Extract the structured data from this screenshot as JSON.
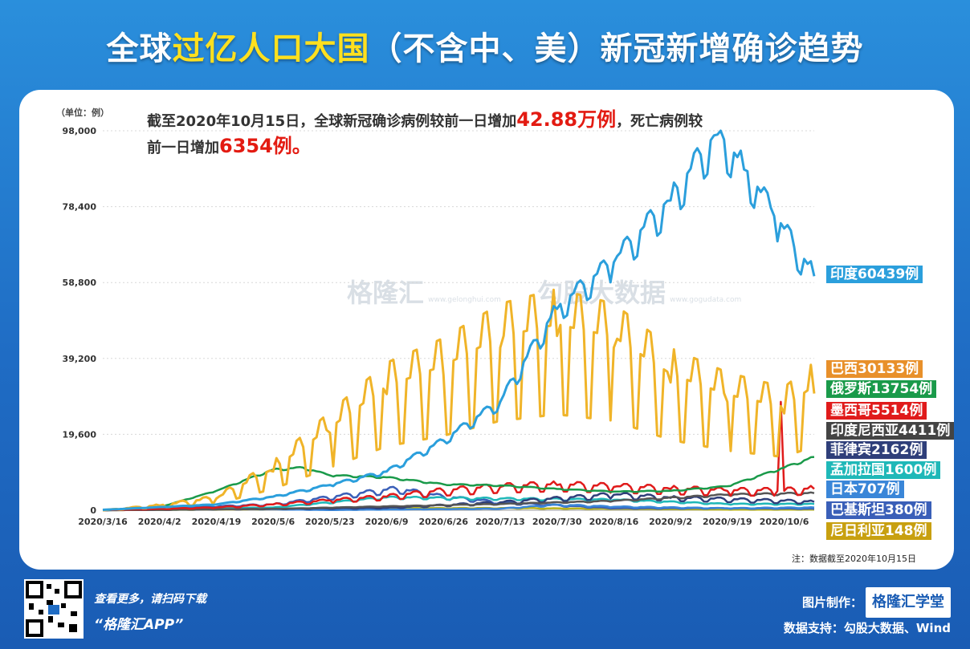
{
  "header": {
    "title_pre": "全球",
    "title_hl": "过亿人口大国",
    "title_post": "（不含中、美）新冠新增确诊趋势"
  },
  "annotation": {
    "l1_pre": "截至2020年10月15日，全球新冠确诊病例较前一日增加",
    "l1_num": "42.88万例",
    "l1_post": "，死亡病例较",
    "l2_pre": "前一日增加",
    "l2_num": "6354例。"
  },
  "watermark": {
    "name1": "格隆汇",
    "url1": "www.gelonghui.com",
    "name2": "勾股大数据",
    "url2": "www.gogudata.com"
  },
  "footnote": "注：数据截至2020年10月15日",
  "footer": {
    "scan1": "查看更多，请扫码下载",
    "scan2": "“格隆汇APP”",
    "made_label": "图片制作：",
    "made_brand": "格隆汇学堂",
    "support": "数据支持：勾股大数据、Wind"
  },
  "chart_data": {
    "type": "line",
    "title": "全球过亿人口大国（不含中、美）新冠新增确诊趋势",
    "unit_label": "（单位：例）",
    "ylim": [
      0,
      98000
    ],
    "y_ticks": [
      0,
      19600,
      39200,
      58800,
      78400,
      98000
    ],
    "y_tick_labels": [
      "0",
      "19,600",
      "39,200",
      "58,800",
      "78,400",
      "98,000"
    ],
    "x_tick_labels": [
      "2020/3/16",
      "2020/4/2",
      "2020/4/19",
      "2020/5/6",
      "2020/5/23",
      "2020/6/9",
      "2020/6/26",
      "2020/7/13",
      "2020/7/30",
      "2020/8/16",
      "2020/9/2",
      "2020/9/19",
      "2020/10/6"
    ],
    "x_range": [
      "2020-03-16",
      "2020-10-15"
    ],
    "legend_position": "right",
    "series": [
      {
        "name": "印度",
        "legend": "印度60439例",
        "color": "#2b9fdc",
        "final": 60439,
        "anchors": [
          [
            "2020-03-16",
            100
          ],
          [
            "2020-04-19",
            1500
          ],
          [
            "2020-05-06",
            3500
          ],
          [
            "2020-05-23",
            6500
          ],
          [
            "2020-06-09",
            10000
          ],
          [
            "2020-06-26",
            18000
          ],
          [
            "2020-07-13",
            28000
          ],
          [
            "2020-07-30",
            52000
          ],
          [
            "2020-08-16",
            64000
          ],
          [
            "2020-09-02",
            80000
          ],
          [
            "2020-09-16",
            97000
          ],
          [
            "2020-09-24",
            88000
          ],
          [
            "2020-10-03",
            76000
          ],
          [
            "2020-10-09",
            68000
          ],
          [
            "2020-10-15",
            60439
          ]
        ],
        "amp": 0.07
      },
      {
        "name": "巴西",
        "legend": "巴西30133例",
        "color": "#f0b429",
        "final": 30133,
        "anchors": [
          [
            "2020-03-16",
            0
          ],
          [
            "2020-04-02",
            1200
          ],
          [
            "2020-04-19",
            3000
          ],
          [
            "2020-05-06",
            10000
          ],
          [
            "2020-05-23",
            20000
          ],
          [
            "2020-06-09",
            30000
          ],
          [
            "2020-06-26",
            35000
          ],
          [
            "2020-07-13",
            42000
          ],
          [
            "2020-07-30",
            45000
          ],
          [
            "2020-08-16",
            42000
          ],
          [
            "2020-09-02",
            33000
          ],
          [
            "2020-09-19",
            28000
          ],
          [
            "2020-10-06",
            25000
          ],
          [
            "2020-10-15",
            30133
          ]
        ],
        "amp": 0.45
      },
      {
        "name": "俄罗斯",
        "legend": "俄罗斯13754例",
        "color": "#1a9a4a",
        "final": 13754,
        "anchors": [
          [
            "2020-03-16",
            0
          ],
          [
            "2020-04-02",
            800
          ],
          [
            "2020-04-19",
            5000
          ],
          [
            "2020-05-06",
            10500
          ],
          [
            "2020-05-15",
            11000
          ],
          [
            "2020-05-23",
            9000
          ],
          [
            "2020-06-09",
            8500
          ],
          [
            "2020-06-26",
            6700
          ],
          [
            "2020-07-13",
            6400
          ],
          [
            "2020-07-30",
            5500
          ],
          [
            "2020-08-16",
            4800
          ],
          [
            "2020-09-02",
            5000
          ],
          [
            "2020-09-19",
            6200
          ],
          [
            "2020-10-06",
            11000
          ],
          [
            "2020-10-15",
            13754
          ]
        ],
        "amp": 0.03
      },
      {
        "name": "墨西哥",
        "legend": "墨西哥5514例",
        "color": "#e01b1b",
        "final": 5514,
        "anchors": [
          [
            "2020-03-16",
            0
          ],
          [
            "2020-04-19",
            700
          ],
          [
            "2020-05-06",
            1500
          ],
          [
            "2020-05-23",
            2500
          ],
          [
            "2020-06-09",
            3500
          ],
          [
            "2020-06-26",
            5000
          ],
          [
            "2020-07-13",
            6000
          ],
          [
            "2020-07-30",
            6500
          ],
          [
            "2020-08-16",
            6000
          ],
          [
            "2020-09-02",
            5500
          ],
          [
            "2020-09-19",
            5000
          ],
          [
            "2020-10-04",
            5000
          ],
          [
            "2020-10-05",
            28000
          ],
          [
            "2020-10-06",
            5000
          ],
          [
            "2020-10-15",
            5514
          ]
        ],
        "amp": 0.25
      },
      {
        "name": "印度尼西亚",
        "legend": "印度尼西亚4411例",
        "color": "#555555",
        "final": 4411,
        "anchors": [
          [
            "2020-03-16",
            0
          ],
          [
            "2020-05-06",
            350
          ],
          [
            "2020-06-09",
            1000
          ],
          [
            "2020-07-13",
            1600
          ],
          [
            "2020-08-16",
            2400
          ],
          [
            "2020-09-19",
            4000
          ],
          [
            "2020-10-15",
            4411
          ]
        ],
        "amp": 0.08
      },
      {
        "name": "菲律宾",
        "legend": "菲律宾2162例",
        "color": "#2f3f7a",
        "final": 2162,
        "anchors": [
          [
            "2020-03-16",
            0
          ],
          [
            "2020-04-19",
            200
          ],
          [
            "2020-06-09",
            600
          ],
          [
            "2020-07-13",
            2000
          ],
          [
            "2020-08-16",
            4000
          ],
          [
            "2020-09-02",
            3200
          ],
          [
            "2020-10-15",
            2162
          ]
        ],
        "amp": 0.25
      },
      {
        "name": "孟加拉国",
        "legend": "孟加拉国1600例",
        "color": "#1fb8b8",
        "final": 1600,
        "anchors": [
          [
            "2020-03-16",
            0
          ],
          [
            "2020-05-06",
            700
          ],
          [
            "2020-06-09",
            3300
          ],
          [
            "2020-07-13",
            3000
          ],
          [
            "2020-08-16",
            2700
          ],
          [
            "2020-09-19",
            1600
          ],
          [
            "2020-10-15",
            1600
          ]
        ],
        "amp": 0.12
      },
      {
        "name": "日本",
        "legend": "日本707例",
        "color": "#3a86d8",
        "final": 707,
        "anchors": [
          [
            "2020-03-16",
            0
          ],
          [
            "2020-04-19",
            400
          ],
          [
            "2020-05-23",
            50
          ],
          [
            "2020-07-13",
            400
          ],
          [
            "2020-07-30",
            1400
          ],
          [
            "2020-08-16",
            900
          ],
          [
            "2020-09-19",
            500
          ],
          [
            "2020-10-15",
            707
          ]
        ],
        "amp": 0.2
      },
      {
        "name": "巴基斯坦",
        "legend": "巴基斯坦380例",
        "color": "#3a5fb8",
        "final": 380,
        "anchors": [
          [
            "2020-03-16",
            0
          ],
          [
            "2020-05-06",
            1500
          ],
          [
            "2020-06-12",
            5500
          ],
          [
            "2020-06-26",
            3500
          ],
          [
            "2020-07-13",
            2000
          ],
          [
            "2020-08-16",
            500
          ],
          [
            "2020-09-19",
            500
          ],
          [
            "2020-10-15",
            380
          ]
        ],
        "amp": 0.2
      },
      {
        "name": "尼日利亚",
        "legend": "尼日利亚148例",
        "color": "#b8b31c",
        "final": 148,
        "anchors": [
          [
            "2020-03-16",
            0
          ],
          [
            "2020-05-06",
            250
          ],
          [
            "2020-06-09",
            500
          ],
          [
            "2020-07-13",
            550
          ],
          [
            "2020-08-16",
            350
          ],
          [
            "2020-09-19",
            150
          ],
          [
            "2020-10-15",
            148
          ]
        ],
        "amp": 0.2
      },
      {
        "name": "",
        "legend": "",
        "color": "#c23cd6",
        "final": 0,
        "anchors": [
          [
            "2020-03-16",
            0
          ],
          [
            "2020-05-06",
            500
          ],
          [
            "2020-06-09",
            1200
          ],
          [
            "2020-07-13",
            1400
          ],
          [
            "2020-07-30",
            2800
          ],
          [
            "2020-08-16",
            2500
          ],
          [
            "2020-09-19",
            1500
          ],
          [
            "2020-10-15",
            1800
          ]
        ],
        "amp": 0.35
      }
    ]
  },
  "legend_colors": [
    "#2b9fdc",
    "#e8902a",
    "#1a9a4a",
    "#e01b1b",
    "#444444",
    "#2f3f7a",
    "#1fb8b8",
    "#3a86d8",
    "#3a5fb8",
    "#c8a010"
  ]
}
